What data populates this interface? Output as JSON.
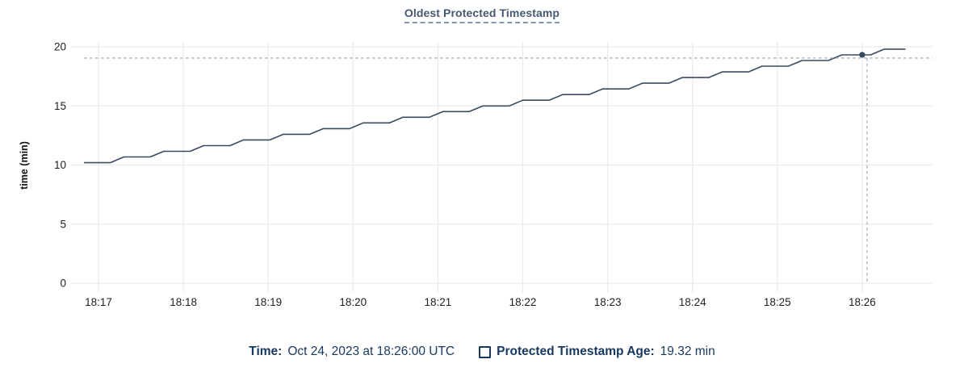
{
  "chart_data": {
    "type": "line",
    "title": "Oldest Protected Timestamp",
    "ylabel": "time (min)",
    "xlabel": "",
    "ylim": [
      0,
      20
    ],
    "y_ticks": [
      0,
      5,
      10,
      15,
      20
    ],
    "x_tick_labels": [
      "18:17",
      "18:18",
      "18:19",
      "18:20",
      "18:21",
      "18:22",
      "18:23",
      "18:24",
      "18:25",
      "18:26"
    ],
    "grid": true,
    "legend_position": "bottom",
    "series": [
      {
        "name": "Protected Timestamp Age",
        "unit": "min",
        "x_units": "minutes after 18:00 UTC",
        "points": [
          [
            16.83,
            10.2
          ],
          [
            17.14,
            10.2
          ],
          [
            17.3,
            10.68
          ],
          [
            17.61,
            10.68
          ],
          [
            17.77,
            11.16
          ],
          [
            18.08,
            11.16
          ],
          [
            18.24,
            11.64
          ],
          [
            18.55,
            11.64
          ],
          [
            18.71,
            12.12
          ],
          [
            19.02,
            12.12
          ],
          [
            19.18,
            12.6
          ],
          [
            19.49,
            12.6
          ],
          [
            19.65,
            13.08
          ],
          [
            19.96,
            13.08
          ],
          [
            20.12,
            13.56
          ],
          [
            20.43,
            13.56
          ],
          [
            20.59,
            14.04
          ],
          [
            20.9,
            14.04
          ],
          [
            21.06,
            14.52
          ],
          [
            21.37,
            14.52
          ],
          [
            21.53,
            15.0
          ],
          [
            21.84,
            15.0
          ],
          [
            22.0,
            15.48
          ],
          [
            22.31,
            15.48
          ],
          [
            22.47,
            15.96
          ],
          [
            22.78,
            15.96
          ],
          [
            22.94,
            16.44
          ],
          [
            23.25,
            16.44
          ],
          [
            23.41,
            16.92
          ],
          [
            23.72,
            16.92
          ],
          [
            23.88,
            17.4
          ],
          [
            24.19,
            17.4
          ],
          [
            24.35,
            17.88
          ],
          [
            24.66,
            17.88
          ],
          [
            24.82,
            18.36
          ],
          [
            25.13,
            18.36
          ],
          [
            25.29,
            18.84
          ],
          [
            25.6,
            18.84
          ],
          [
            25.76,
            19.32
          ],
          [
            26.1,
            19.32
          ],
          [
            26.26,
            19.8
          ],
          [
            26.51,
            19.8
          ]
        ]
      }
    ],
    "hover": {
      "x": 26.0,
      "value": 19.32,
      "time_label": "18:26:00",
      "date_label": "Oct 24, 2023"
    }
  },
  "tooltip": {
    "time_label": "Time:",
    "time_value": "Oct 24, 2023 at 18:26:00 UTC",
    "series_label": "Protected Timestamp Age:",
    "series_value": "19.32 min"
  },
  "colors": {
    "title": "#475872",
    "line": "#3b4a63",
    "dot": "#36455e",
    "grid": "#ececec",
    "crosshair": "#a3b5c2",
    "tick_text": "#1c1e21",
    "tooltip_text": "#17385e"
  }
}
